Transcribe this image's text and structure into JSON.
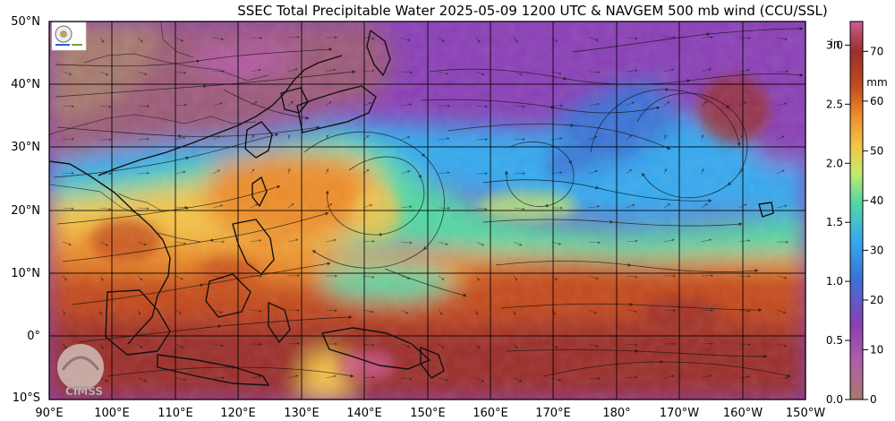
{
  "title": "SSEC Total Precipitable Water  2025-05-09 1200 UTC & NAVGEM 500 mb wind (CCU/SSL)",
  "lat_labels": [
    "50°N",
    "40°N",
    "30°N",
    "20°N",
    "10°N",
    "0°",
    "10°S"
  ],
  "lon_labels": [
    "90°E",
    "100°E",
    "110°E",
    "120°E",
    "130°E",
    "140°E",
    "150°E",
    "160°E",
    "170°E",
    "180°",
    "170°W",
    "160°W",
    "150°W"
  ],
  "colorbar": {
    "inches_unit": "in",
    "mm_unit": "mm",
    "inches_ticks": [
      "3.0",
      "2.5",
      "2.0",
      "1.5",
      "1.0",
      "0.5",
      "0.0"
    ],
    "mm_ticks": [
      "70",
      "60",
      "50",
      "40",
      "30",
      "20",
      "10",
      "0"
    ],
    "inches_range": [
      0,
      3.2
    ],
    "mm_range": [
      0,
      76
    ],
    "colors": [
      "#a87a6e",
      "#b05ea8",
      "#8a3fb6",
      "#3b73d6",
      "#35a9ef",
      "#52d8a4",
      "#c5ec6b",
      "#f4c54a",
      "#ee8d2a",
      "#c44a1e",
      "#9b2f2a",
      "#d05a94"
    ]
  },
  "logos": {
    "top_left": "NOAA / SSEC logo",
    "bottom_left": "CIMSS"
  },
  "map_extent": {
    "lon_range": [
      "90°E",
      "150°W"
    ],
    "lat_range": [
      "10°S",
      "50°N"
    ]
  }
}
